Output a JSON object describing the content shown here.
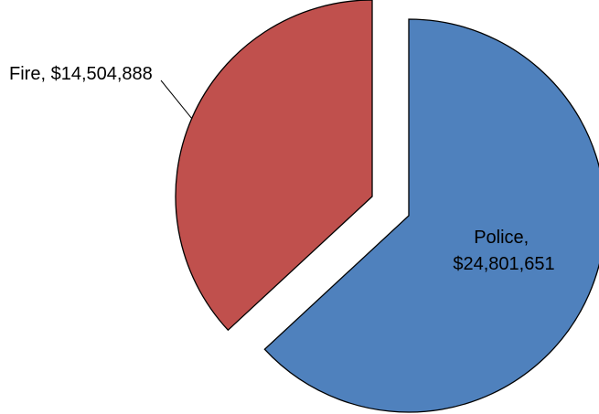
{
  "chart_data": {
    "type": "pie",
    "title": "",
    "exploded": true,
    "slices": [
      {
        "label": "Police",
        "value": 24801651,
        "value_text": "$24,801,651",
        "color": "#4f81bd"
      },
      {
        "label": "Fire",
        "value": 14504888,
        "value_text": "$14,504,888",
        "color": "#c0504d"
      }
    ]
  }
}
